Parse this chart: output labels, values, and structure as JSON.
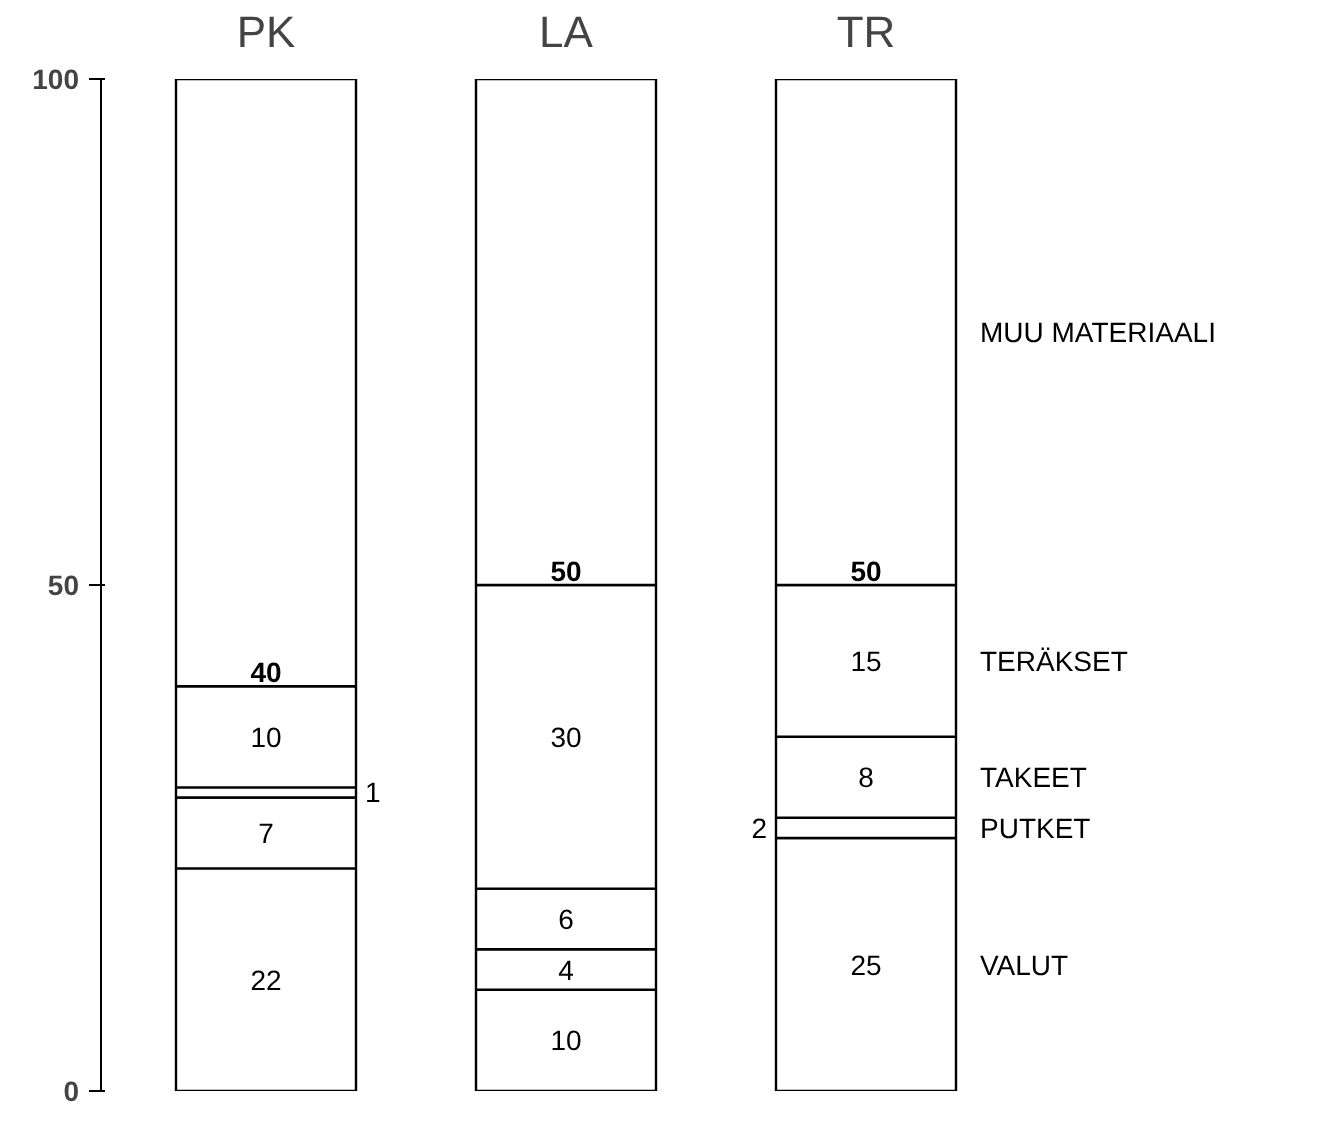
{
  "chart_data": {
    "type": "bar",
    "stacked": true,
    "categories": [
      "PK",
      "LA",
      "TR"
    ],
    "ylim": [
      0,
      100
    ],
    "yticks": [
      0,
      50,
      100
    ],
    "grid": false,
    "legend": false,
    "series": [
      {
        "name": "VALUT",
        "color": "#ffffff",
        "values": [
          22,
          10,
          25
        ],
        "value_labels": [
          "22",
          "10",
          "25"
        ]
      },
      {
        "name": "PUTKET",
        "color": "#ffffff",
        "values": [
          7,
          4,
          2
        ],
        "value_labels": [
          "7",
          "4",
          "2"
        ]
      },
      {
        "name": "TAKEET",
        "color": "#ffffff",
        "values": [
          1,
          6,
          8
        ],
        "value_labels": [
          "1",
          "6",
          "8"
        ]
      },
      {
        "name": "TERÄKSET",
        "color": "#ffffff",
        "values": [
          10,
          30,
          15
        ],
        "value_labels": [
          "10",
          "30",
          "15"
        ]
      },
      {
        "name": "MUU MATERIAALI",
        "color": "#ffffff",
        "values": [
          60,
          50,
          50
        ],
        "value_labels": [
          null,
          null,
          null
        ]
      }
    ],
    "annotations": [
      {
        "text": "40",
        "x": "PK",
        "y": 40
      },
      {
        "text": "50",
        "x": "LA",
        "y": 50
      },
      {
        "text": "50",
        "x": "TR",
        "y": 50
      }
    ]
  }
}
